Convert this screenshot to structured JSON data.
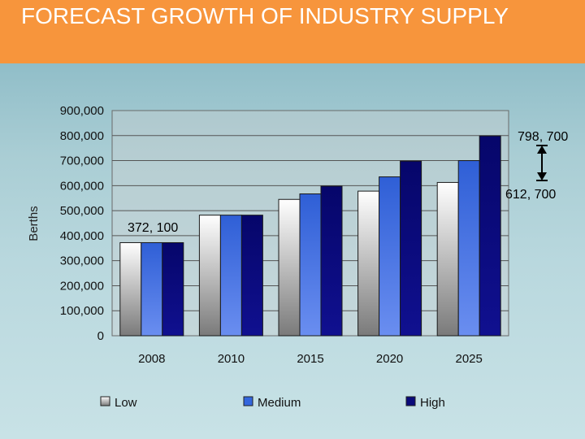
{
  "slide": {
    "title": "FORECAST GROWTH OF INDUSTRY SUPPLY"
  },
  "colors": {
    "title_bar": "#f7953c",
    "low": "#e0e0e0",
    "medium": "#3366dd",
    "high": "#0a0a7a"
  },
  "chart_data": {
    "type": "bar",
    "title": "",
    "xlabel": "",
    "ylabel": "Berths",
    "ylim": [
      0,
      900000
    ],
    "yticks": [
      0,
      100000,
      200000,
      300000,
      400000,
      500000,
      600000,
      700000,
      800000,
      900000
    ],
    "ytick_labels": [
      "0",
      "100,000",
      "200,000",
      "300,000",
      "400,000",
      "500,000",
      "600,000",
      "700,000",
      "800,000",
      "900,000"
    ],
    "categories": [
      "2008",
      "2010",
      "2015",
      "2020",
      "2025"
    ],
    "series": [
      {
        "name": "Low",
        "values": [
          372100,
          482000,
          545000,
          578000,
          612700
        ]
      },
      {
        "name": "Medium",
        "values": [
          372100,
          482000,
          567000,
          635000,
          700000
        ]
      },
      {
        "name": "High",
        "values": [
          372100,
          482000,
          598000,
          698000,
          798700
        ]
      }
    ],
    "legend_position": "bottom",
    "grid": true,
    "annotations": [
      "798, 700",
      "612, 700",
      "372, 100"
    ]
  }
}
